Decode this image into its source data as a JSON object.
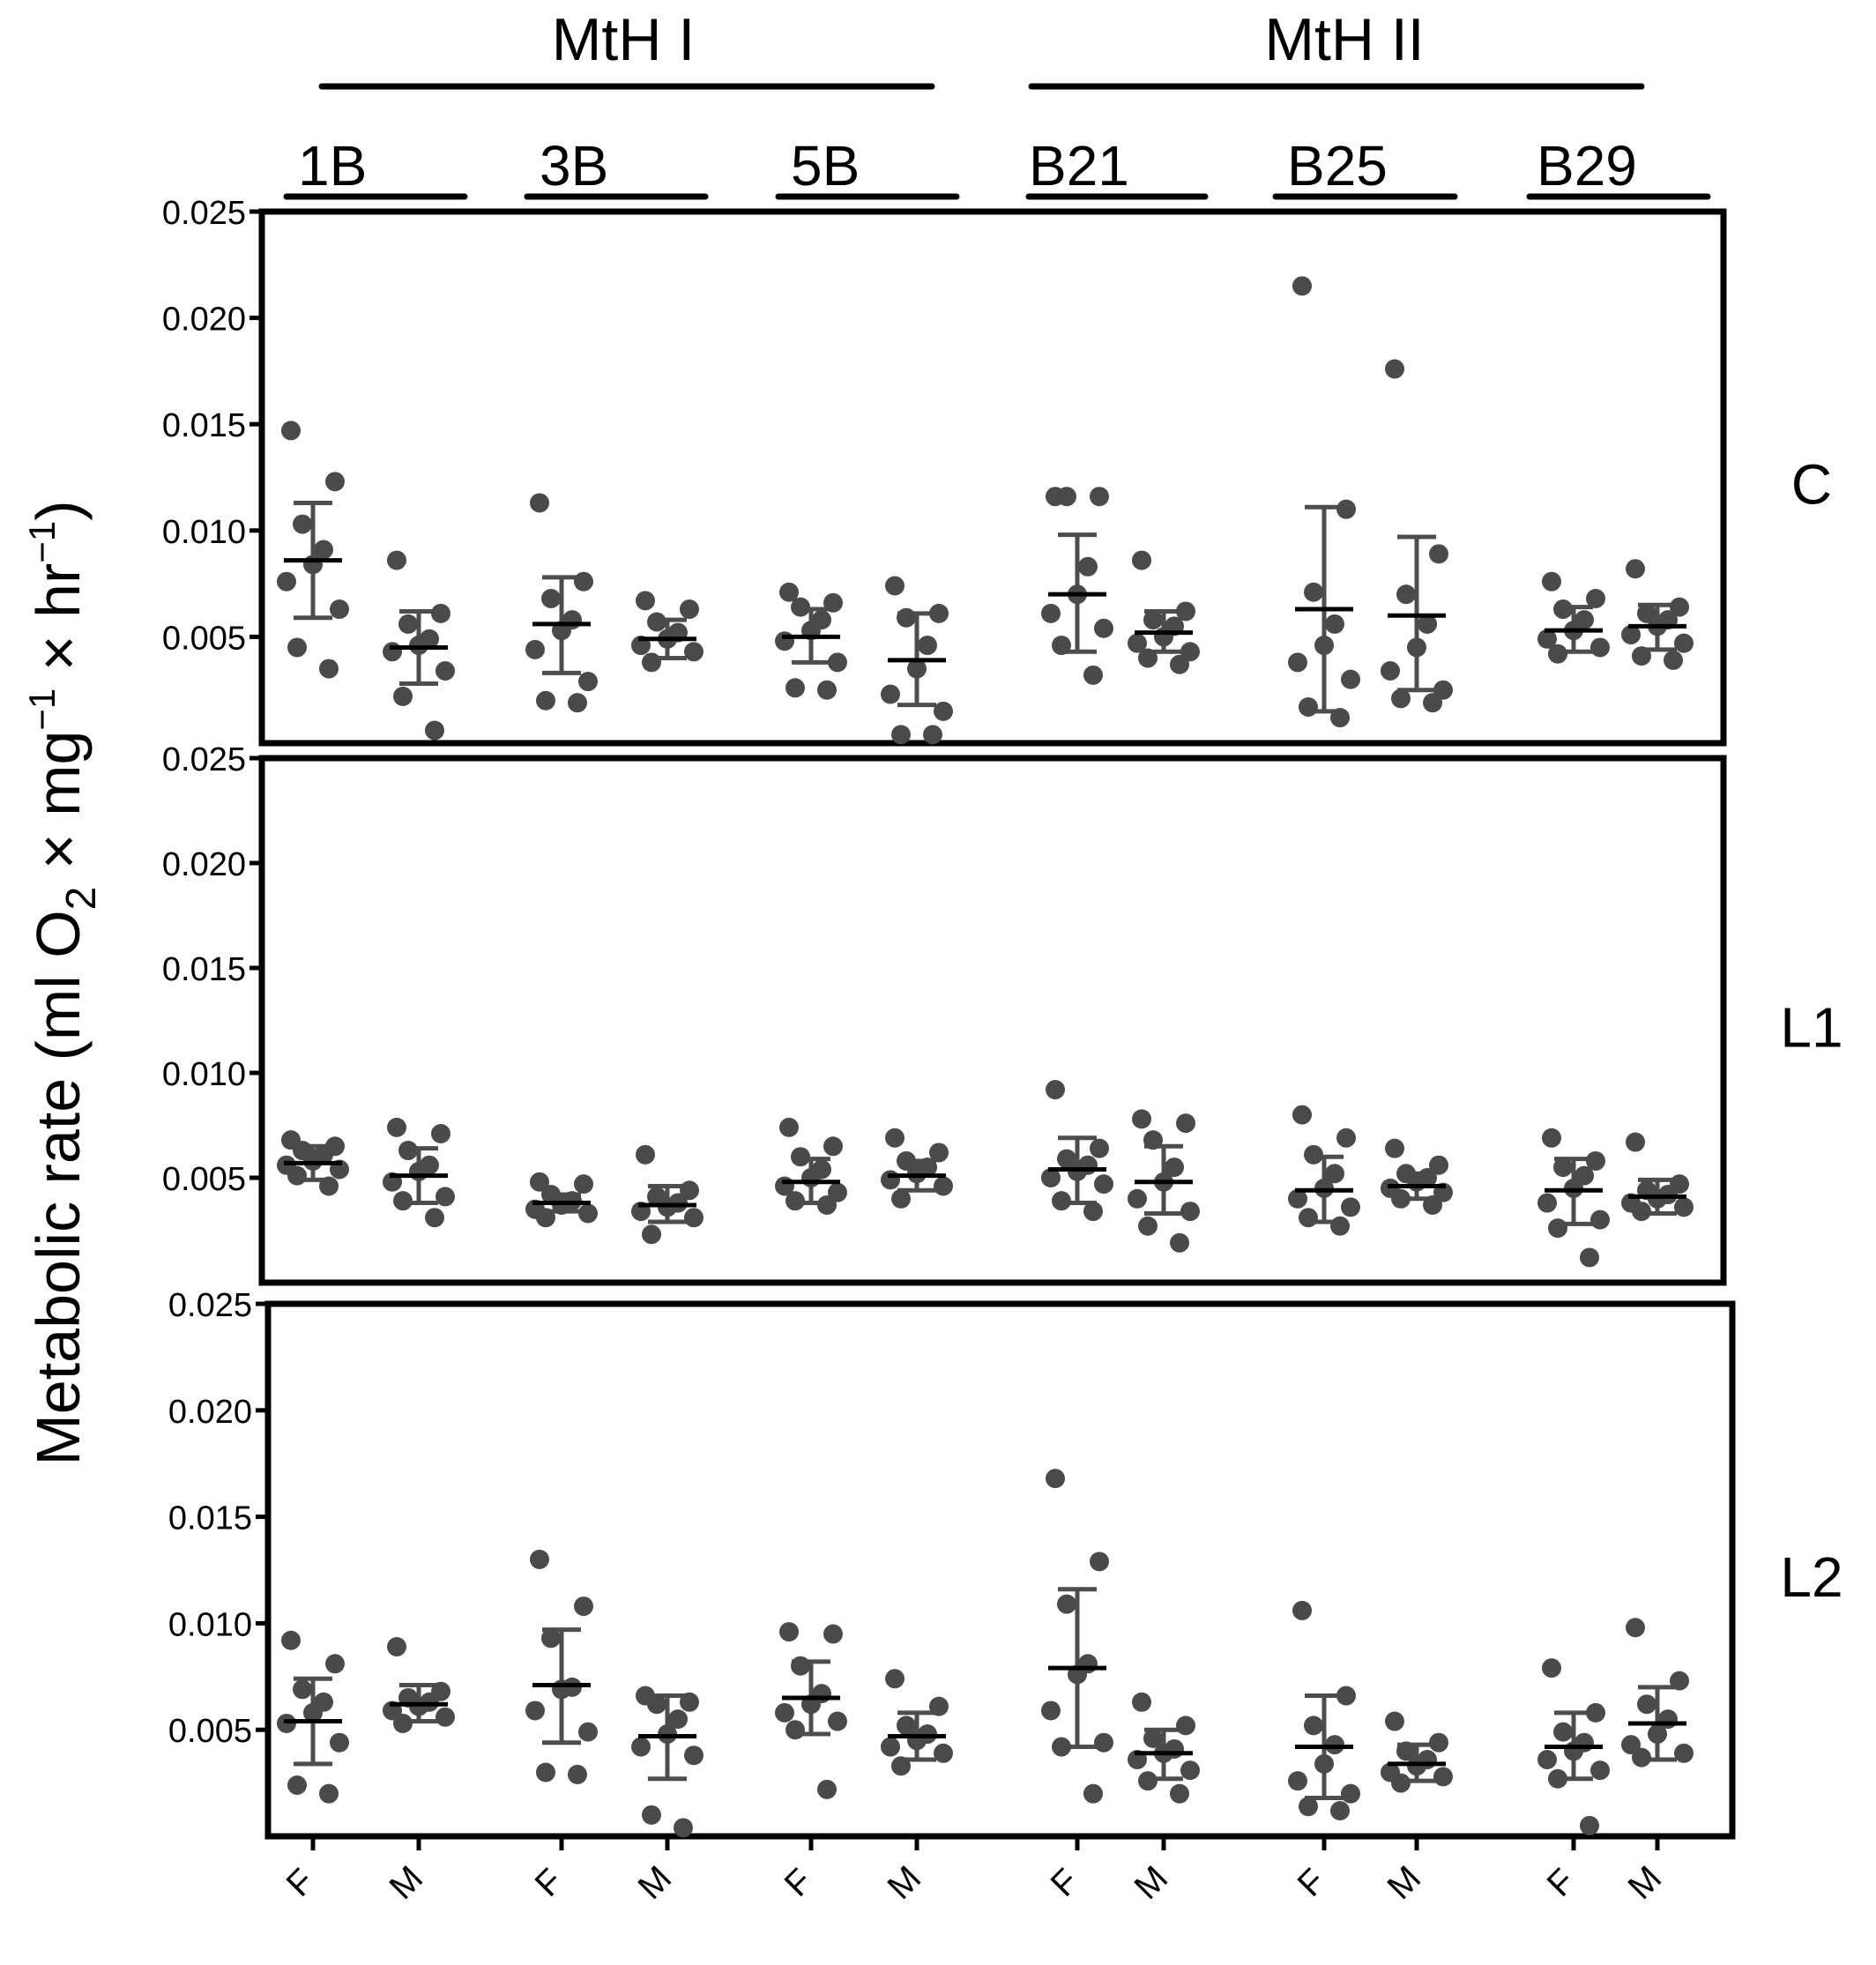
{
  "figure": {
    "ylabel_main": "Metabolic rate (ml O",
    "ylabel_sub_2": "2",
    "ylabel_mid1": " × mg",
    "ylabel_sup_1": "−1",
    "ylabel_mid2": " × hr",
    "ylabel_sup_2": "−1",
    "ylabel_end": ")"
  },
  "chart_data": {
    "type": "scatter",
    "ylim": [
      0,
      0.025
    ],
    "yticks": [
      "0.025",
      "0.020",
      "0.015",
      "0.010",
      "0.005"
    ],
    "group_headers": [
      "MtH I",
      "MtH II"
    ],
    "lines": [
      "1B",
      "3B",
      "5B",
      "B21",
      "B25",
      "B29"
    ],
    "sexes": [
      "F",
      "M"
    ],
    "colors": {
      "points": "#4a4a4a",
      "mean": "#000000",
      "errorbar": "#4d4d4d",
      "frame": "#000000"
    },
    "panels": [
      {
        "label": "C",
        "groups": [
          {
            "line": "1B",
            "sex": "F",
            "mean": 0.0086,
            "sd_low": 0.0059,
            "sd_high": 0.0113,
            "points": [
              0.0147,
              0.0123,
              0.0103,
              0.0091,
              0.0084,
              0.0076,
              0.0063,
              0.0045,
              0.0035
            ]
          },
          {
            "line": "1B",
            "sex": "M",
            "mean": 0.0045,
            "sd_low": 0.0028,
            "sd_high": 0.0062,
            "points": [
              0.0086,
              0.0061,
              0.0056,
              0.0049,
              0.0046,
              0.0043,
              0.0034,
              0.0022,
              0.0006
            ]
          },
          {
            "line": "3B",
            "sex": "F",
            "mean": 0.0056,
            "sd_low": 0.0033,
            "sd_high": 0.0078,
            "points": [
              0.0113,
              0.0076,
              0.0068,
              0.0058,
              0.0053,
              0.0044,
              0.0029,
              0.002,
              0.0019
            ]
          },
          {
            "line": "3B",
            "sex": "M",
            "mean": 0.0049,
            "sd_low": 0.004,
            "sd_high": 0.0058,
            "points": [
              0.0067,
              0.0063,
              0.0057,
              0.0052,
              0.0049,
              0.0046,
              0.0043,
              0.0038
            ]
          },
          {
            "line": "5B",
            "sex": "F",
            "mean": 0.005,
            "sd_low": 0.0038,
            "sd_high": 0.0063,
            "points": [
              0.0071,
              0.0066,
              0.0064,
              0.0058,
              0.0053,
              0.0048,
              0.0038,
              0.0026,
              0.0025
            ]
          },
          {
            "line": "5B",
            "sex": "M",
            "mean": 0.0039,
            "sd_low": 0.0018,
            "sd_high": 0.0061,
            "points": [
              0.0074,
              0.0061,
              0.0059,
              0.0046,
              0.0035,
              0.0023,
              0.0015,
              0.0004,
              0.0004
            ]
          },
          {
            "line": "B21",
            "sex": "F",
            "mean": 0.007,
            "sd_low": 0.0043,
            "sd_high": 0.0098,
            "points": [
              0.0116,
              0.0116,
              0.0116,
              0.0083,
              0.007,
              0.0061,
              0.0054,
              0.0046,
              0.0032
            ]
          },
          {
            "line": "B21",
            "sex": "M",
            "mean": 0.0052,
            "sd_low": 0.0043,
            "sd_high": 0.0062,
            "points": [
              0.0086,
              0.0062,
              0.0058,
              0.0055,
              0.005,
              0.0047,
              0.0043,
              0.004,
              0.0037
            ]
          },
          {
            "line": "B25",
            "sex": "F",
            "mean": 0.0063,
            "sd_low": 0.0015,
            "sd_high": 0.0111,
            "points": [
              0.0215,
              0.011,
              0.0071,
              0.0056,
              0.0046,
              0.0038,
              0.003,
              0.0017,
              0.0012
            ]
          },
          {
            "line": "B25",
            "sex": "M",
            "mean": 0.006,
            "sd_low": 0.0025,
            "sd_high": 0.0097,
            "points": [
              0.0176,
              0.0089,
              0.007,
              0.0056,
              0.0045,
              0.0034,
              0.0025,
              0.0021,
              0.0019
            ]
          },
          {
            "line": "B29",
            "sex": "F",
            "mean": 0.0053,
            "sd_low": 0.0043,
            "sd_high": 0.0064,
            "points": [
              0.0076,
              0.0068,
              0.0063,
              0.0058,
              0.0053,
              0.0049,
              0.0045,
              0.0042
            ]
          },
          {
            "line": "B29",
            "sex": "M",
            "mean": 0.0055,
            "sd_low": 0.0044,
            "sd_high": 0.0065,
            "points": [
              0.0082,
              0.0064,
              0.0061,
              0.0058,
              0.0055,
              0.0051,
              0.0047,
              0.0041,
              0.0039
            ]
          }
        ]
      },
      {
        "label": "L1",
        "groups": [
          {
            "line": "1B",
            "sex": "F",
            "mean": 0.0057,
            "sd_low": 0.0049,
            "sd_high": 0.0065,
            "points": [
              0.0068,
              0.0065,
              0.0063,
              0.0061,
              0.0058,
              0.0056,
              0.0054,
              0.0051,
              0.0046
            ]
          },
          {
            "line": "1B",
            "sex": "M",
            "mean": 0.0051,
            "sd_low": 0.0038,
            "sd_high": 0.0064,
            "points": [
              0.0074,
              0.0071,
              0.0063,
              0.0056,
              0.0053,
              0.0048,
              0.0041,
              0.0039,
              0.0031
            ]
          },
          {
            "line": "3B",
            "sex": "F",
            "mean": 0.0038,
            "sd_low": 0.0034,
            "sd_high": 0.0042,
            "points": [
              0.0048,
              0.0047,
              0.0042,
              0.0039,
              0.0037,
              0.0035,
              0.0033,
              0.0031
            ]
          },
          {
            "line": "3B",
            "sex": "M",
            "mean": 0.0037,
            "sd_low": 0.0029,
            "sd_high": 0.0046,
            "points": [
              0.0061,
              0.0044,
              0.0041,
              0.0038,
              0.0036,
              0.0034,
              0.0031,
              0.0023
            ]
          },
          {
            "line": "5B",
            "sex": "F",
            "mean": 0.0048,
            "sd_low": 0.0038,
            "sd_high": 0.0059,
            "points": [
              0.0074,
              0.0065,
              0.006,
              0.0054,
              0.005,
              0.0046,
              0.0043,
              0.0039,
              0.0037
            ]
          },
          {
            "line": "5B",
            "sex": "M",
            "mean": 0.0051,
            "sd_low": 0.0044,
            "sd_high": 0.0058,
            "points": [
              0.0069,
              0.0062,
              0.0058,
              0.0055,
              0.0052,
              0.0049,
              0.0046,
              0.004
            ]
          },
          {
            "line": "B21",
            "sex": "F",
            "mean": 0.0054,
            "sd_low": 0.0038,
            "sd_high": 0.0069,
            "points": [
              0.0092,
              0.0064,
              0.0059,
              0.0056,
              0.0053,
              0.005,
              0.0047,
              0.0039,
              0.0034
            ]
          },
          {
            "line": "B21",
            "sex": "M",
            "mean": 0.0048,
            "sd_low": 0.0033,
            "sd_high": 0.0065,
            "points": [
              0.0078,
              0.0076,
              0.0068,
              0.0055,
              0.0048,
              0.004,
              0.0034,
              0.0027,
              0.0019
            ]
          },
          {
            "line": "B25",
            "sex": "F",
            "mean": 0.0044,
            "sd_low": 0.0029,
            "sd_high": 0.006,
            "points": [
              0.008,
              0.0069,
              0.0061,
              0.0052,
              0.0045,
              0.004,
              0.0036,
              0.0031,
              0.0027
            ]
          },
          {
            "line": "B25",
            "sex": "M",
            "mean": 0.0046,
            "sd_low": 0.004,
            "sd_high": 0.0052,
            "points": [
              0.0064,
              0.0056,
              0.0052,
              0.005,
              0.0048,
              0.0045,
              0.0043,
              0.004,
              0.0037
            ]
          },
          {
            "line": "B29",
            "sex": "F",
            "mean": 0.0044,
            "sd_low": 0.0028,
            "sd_high": 0.0059,
            "points": [
              0.0069,
              0.0058,
              0.0055,
              0.0051,
              0.0045,
              0.0038,
              0.003,
              0.0026,
              0.0012
            ]
          },
          {
            "line": "B29",
            "sex": "M",
            "mean": 0.0041,
            "sd_low": 0.0033,
            "sd_high": 0.0049,
            "points": [
              0.0067,
              0.0047,
              0.0044,
              0.0042,
              0.004,
              0.0038,
              0.0036,
              0.0034
            ]
          }
        ]
      },
      {
        "label": "L2",
        "groups": [
          {
            "line": "1B",
            "sex": "F",
            "mean": 0.0054,
            "sd_low": 0.0034,
            "sd_high": 0.0074,
            "points": [
              0.0092,
              0.0081,
              0.0069,
              0.0063,
              0.0058,
              0.0053,
              0.0044,
              0.0024,
              0.002
            ]
          },
          {
            "line": "1B",
            "sex": "M",
            "mean": 0.0062,
            "sd_low": 0.0054,
            "sd_high": 0.0071,
            "points": [
              0.0089,
              0.0068,
              0.0065,
              0.0063,
              0.0061,
              0.0059,
              0.0056,
              0.0053
            ]
          },
          {
            "line": "3B",
            "sex": "F",
            "mean": 0.0071,
            "sd_low": 0.0044,
            "sd_high": 0.0097,
            "points": [
              0.013,
              0.0108,
              0.0093,
              0.007,
              0.0069,
              0.0059,
              0.0049,
              0.003,
              0.0029
            ]
          },
          {
            "line": "3B",
            "sex": "M",
            "mean": 0.0047,
            "sd_low": 0.0027,
            "sd_high": 0.0066,
            "points": [
              0.0066,
              0.0063,
              0.0062,
              0.0055,
              0.0048,
              0.0042,
              0.0038,
              0.001,
              0.0004
            ]
          },
          {
            "line": "5B",
            "sex": "F",
            "mean": 0.0065,
            "sd_low": 0.0048,
            "sd_high": 0.0082,
            "points": [
              0.0096,
              0.0095,
              0.008,
              0.0067,
              0.0062,
              0.0058,
              0.0054,
              0.005,
              0.0022
            ]
          },
          {
            "line": "5B",
            "sex": "M",
            "mean": 0.0047,
            "sd_low": 0.0036,
            "sd_high": 0.0058,
            "points": [
              0.0074,
              0.0061,
              0.0052,
              0.0048,
              0.0045,
              0.0042,
              0.0039,
              0.0033
            ]
          },
          {
            "line": "B21",
            "sex": "F",
            "mean": 0.0079,
            "sd_low": 0.0042,
            "sd_high": 0.0116,
            "points": [
              0.0168,
              0.0129,
              0.0109,
              0.0081,
              0.0076,
              0.0059,
              0.0044,
              0.0042,
              0.002
            ]
          },
          {
            "line": "B21",
            "sex": "M",
            "mean": 0.0039,
            "sd_low": 0.0027,
            "sd_high": 0.005,
            "points": [
              0.0063,
              0.0052,
              0.0046,
              0.0041,
              0.0039,
              0.0036,
              0.0031,
              0.0026,
              0.002
            ]
          },
          {
            "line": "B25",
            "sex": "F",
            "mean": 0.0042,
            "sd_low": 0.0018,
            "sd_high": 0.0066,
            "points": [
              0.0106,
              0.0066,
              0.0052,
              0.0043,
              0.0034,
              0.0026,
              0.002,
              0.0014,
              0.0012
            ]
          },
          {
            "line": "B25",
            "sex": "M",
            "mean": 0.0034,
            "sd_low": 0.0026,
            "sd_high": 0.0043,
            "points": [
              0.0054,
              0.0044,
              0.004,
              0.0036,
              0.0033,
              0.003,
              0.0028,
              0.0025
            ]
          },
          {
            "line": "B29",
            "sex": "F",
            "mean": 0.0042,
            "sd_low": 0.0027,
            "sd_high": 0.0058,
            "points": [
              0.0079,
              0.0058,
              0.0049,
              0.0044,
              0.004,
              0.0036,
              0.0031,
              0.0027,
              0.0005
            ]
          },
          {
            "line": "B29",
            "sex": "M",
            "mean": 0.0053,
            "sd_low": 0.0036,
            "sd_high": 0.007,
            "points": [
              0.0098,
              0.0073,
              0.0062,
              0.0055,
              0.0048,
              0.0043,
              0.0039,
              0.0037
            ]
          }
        ]
      }
    ]
  }
}
